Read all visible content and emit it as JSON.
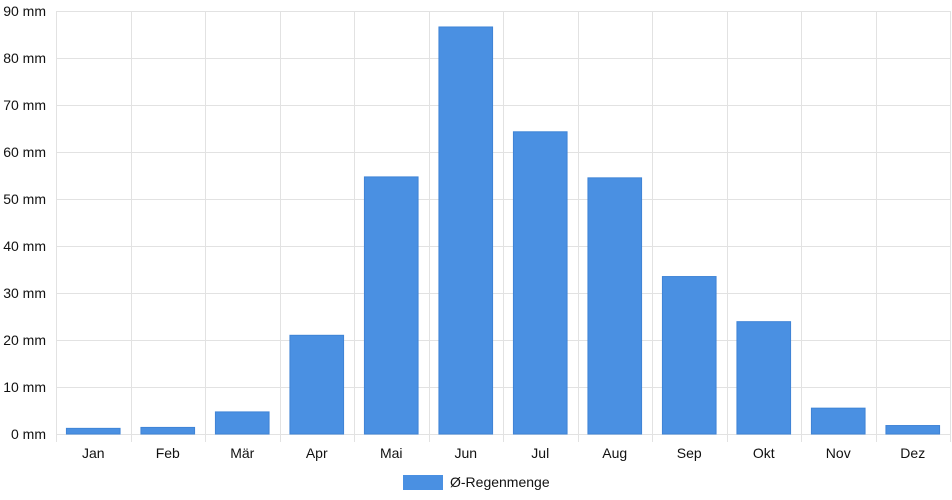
{
  "chart_data": {
    "type": "bar",
    "categories": [
      "Jan",
      "Feb",
      "Mär",
      "Apr",
      "Mai",
      "Jun",
      "Jul",
      "Aug",
      "Sep",
      "Okt",
      "Nov",
      "Dez"
    ],
    "series": [
      {
        "name": "Ø-Regenmenge",
        "values": [
          1.2,
          1.4,
          4.7,
          21.0,
          54.7,
          86.6,
          64.3,
          54.5,
          33.5,
          23.9,
          5.5,
          1.8
        ],
        "color": "#4a90e2"
      }
    ],
    "y_unit": "mm",
    "ylim": [
      0,
      90
    ],
    "y_ticks": [
      0,
      10,
      20,
      30,
      40,
      50,
      60,
      70,
      80,
      90
    ],
    "y_tick_labels": [
      "0 mm",
      "10 mm",
      "20 mm",
      "30 mm",
      "40 mm",
      "50 mm",
      "60 mm",
      "70 mm",
      "80 mm",
      "90 mm"
    ],
    "grid": true,
    "legend_position": "bottom-center"
  }
}
